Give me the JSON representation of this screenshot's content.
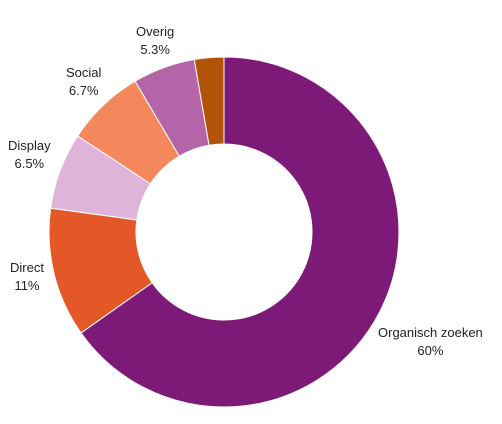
{
  "chart_data": {
    "type": "pie",
    "title": "",
    "donut": true,
    "slices": [
      {
        "label": "Organisch zoeken",
        "value_label": "60%",
        "value": 60,
        "color": "#7d1a78"
      },
      {
        "label": "Direct",
        "value_label": "11%",
        "value": 11,
        "color": "#e35826"
      },
      {
        "label": "Display",
        "value_label": "6.5%",
        "value": 6.5,
        "color": "#dfb4d9"
      },
      {
        "label": "Social",
        "value_label": "6.7%",
        "value": 6.7,
        "color": "#f5875d"
      },
      {
        "label": "Overig",
        "value_label": "5.3%",
        "value": 5.3,
        "color": "#b565a7"
      },
      {
        "label": "",
        "value_label": "",
        "value": 2.5,
        "color": "#b15308"
      }
    ]
  }
}
